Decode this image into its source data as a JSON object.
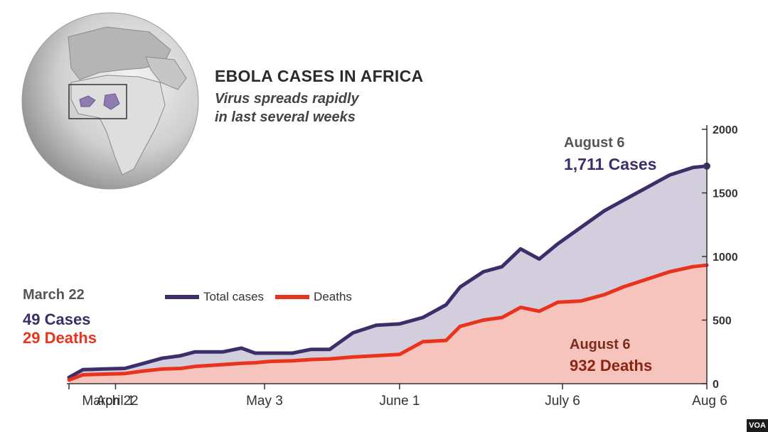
{
  "title": "EBOLA CASES IN AFRICA",
  "subtitle_line1": "Virus spreads rapidly",
  "subtitle_line2": "in last several weeks",
  "annotations": {
    "start_date": "March 22",
    "start_cases": "49 Cases",
    "start_deaths": "29 Deaths",
    "end_cases_date": "August 6",
    "end_cases": "1,711 Cases",
    "end_deaths_date": "August 6",
    "end_deaths": "932 Deaths"
  },
  "legend": {
    "cases": "Total cases",
    "deaths": "Deaths"
  },
  "badge": "VOA",
  "colors": {
    "cases_line": "#3d2e6b",
    "cases_fill": "#d3cedd",
    "deaths_line": "#e8341c",
    "deaths_fill": "#f6c3bd",
    "axis": "#333333"
  },
  "map": {
    "description_icon": "globe-africa-icon"
  },
  "chart_data": {
    "type": "area",
    "x_tick_labels": [
      "March 22",
      "April 1",
      "May 3",
      "June 1",
      "July 6",
      "Aug 6"
    ],
    "x_tick_days": [
      0,
      10,
      42,
      71,
      106,
      137
    ],
    "y_ticks": [
      0,
      500,
      1000,
      1500,
      2000
    ],
    "ylim": [
      0,
      2000
    ],
    "series": [
      {
        "name": "Total cases",
        "x_days": [
          0,
          3,
          7,
          12,
          16,
          20,
          24,
          27,
          33,
          37,
          40,
          43,
          48,
          52,
          56,
          61,
          66,
          71,
          76,
          81,
          84,
          89,
          93,
          97,
          101,
          105,
          110,
          115,
          119,
          124,
          129,
          134,
          137
        ],
        "values": [
          49,
          110,
          115,
          120,
          160,
          200,
          220,
          250,
          250,
          280,
          240,
          240,
          240,
          270,
          270,
          400,
          460,
          470,
          520,
          620,
          760,
          880,
          920,
          1060,
          980,
          1100,
          1230,
          1360,
          1440,
          1540,
          1640,
          1700,
          1711
        ]
      },
      {
        "name": "Deaths",
        "x_days": [
          0,
          3,
          7,
          12,
          16,
          20,
          24,
          27,
          33,
          37,
          40,
          43,
          48,
          52,
          56,
          61,
          66,
          71,
          76,
          81,
          84,
          89,
          93,
          97,
          101,
          105,
          110,
          115,
          119,
          124,
          129,
          134,
          137
        ],
        "values": [
          29,
          70,
          75,
          80,
          100,
          115,
          120,
          135,
          150,
          160,
          165,
          175,
          180,
          190,
          195,
          210,
          220,
          230,
          330,
          340,
          450,
          500,
          520,
          600,
          570,
          640,
          650,
          700,
          760,
          820,
          880,
          920,
          932
        ]
      }
    ]
  }
}
